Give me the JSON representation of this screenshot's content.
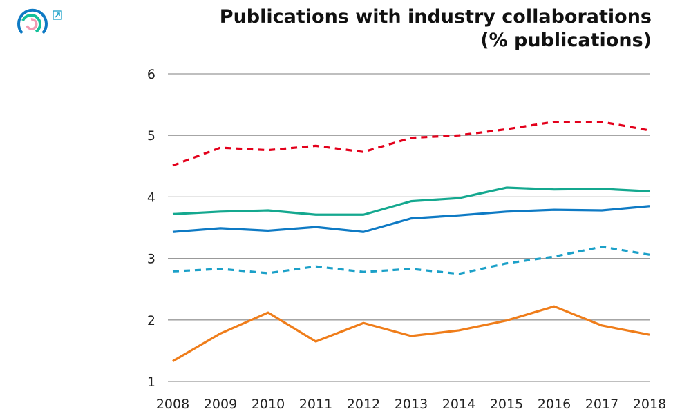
{
  "chart_data": {
    "type": "line",
    "title": "Publications with industry collaborations",
    "subtitle": "(% publications)",
    "x": [
      2008,
      2009,
      2010,
      2011,
      2012,
      2013,
      2014,
      2015,
      2016,
      2017,
      2018
    ],
    "ylim": [
      1,
      6
    ],
    "yticks": [
      1,
      2,
      3,
      4,
      5,
      6
    ],
    "grid": "horizontal",
    "series": [
      {
        "color": "#e3001b",
        "style": "dashed",
        "values": [
          4.51,
          4.8,
          4.76,
          4.83,
          4.73,
          4.96,
          5.0,
          5.1,
          5.22,
          5.22,
          5.08
        ]
      },
      {
        "color": "#14a88f",
        "style": "solid",
        "values": [
          3.72,
          3.76,
          3.78,
          3.71,
          3.71,
          3.93,
          3.98,
          4.15,
          4.12,
          4.13,
          4.09
        ]
      },
      {
        "color": "#0e7ac4",
        "style": "solid",
        "values": [
          3.43,
          3.49,
          3.45,
          3.51,
          3.43,
          3.65,
          3.7,
          3.76,
          3.79,
          3.78,
          3.85
        ]
      },
      {
        "color": "#1ba0c8",
        "style": "dashed",
        "values": [
          2.79,
          2.83,
          2.76,
          2.87,
          2.78,
          2.83,
          2.75,
          2.92,
          3.03,
          3.19,
          3.06
        ]
      },
      {
        "color": "#ef7d1a",
        "style": "solid",
        "values": [
          1.33,
          1.78,
          2.12,
          1.65,
          1.95,
          1.74,
          1.83,
          1.99,
          2.22,
          1.91,
          1.76
        ]
      }
    ]
  },
  "icons": {
    "logo": "circular-rings-logo",
    "external": "external-link-icon"
  }
}
